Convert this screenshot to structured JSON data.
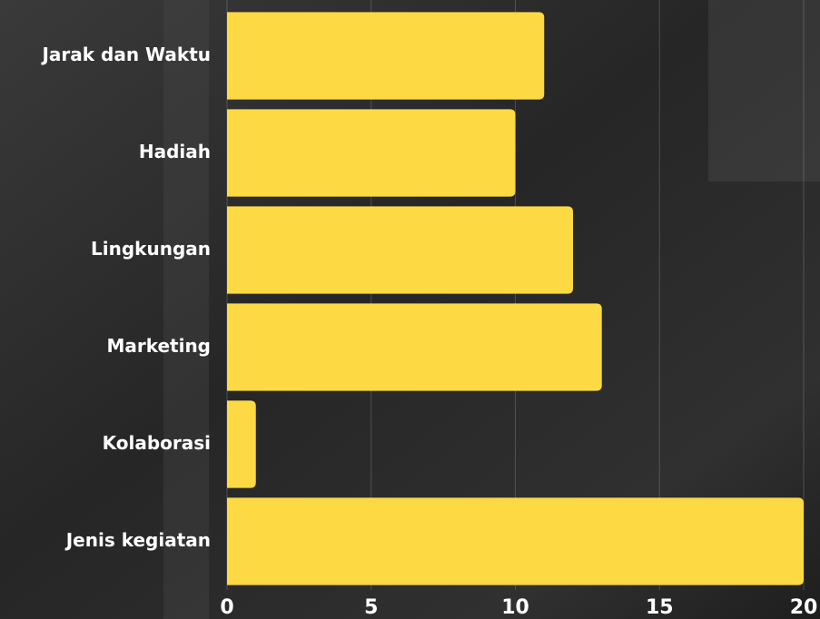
{
  "chart_data": {
    "type": "barh",
    "categories": [
      "Jarak dan Waktu",
      "Hadiah",
      "Lingkungan",
      "Marketing",
      "Kolaborasi",
      "Jenis kegiatan"
    ],
    "values": [
      11,
      10,
      12,
      13,
      1,
      20
    ],
    "color": "#fdd944",
    "xlim": [
      0,
      20
    ],
    "xticks": [
      0,
      5,
      10,
      15,
      20
    ],
    "grid": true
  }
}
